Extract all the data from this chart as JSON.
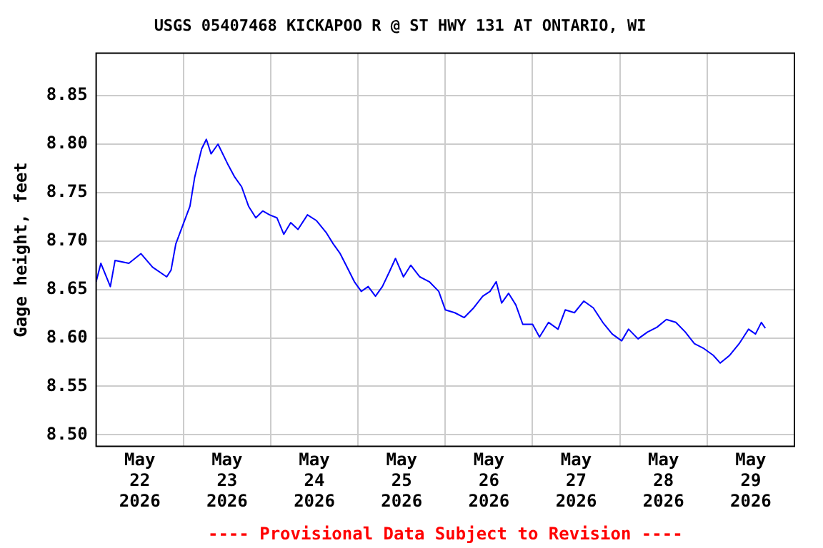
{
  "chart_data": {
    "type": "line",
    "title": "USGS 05407468 KICKAPOO R @ ST HWY 131 AT ONTARIO, WI",
    "ylabel": "Gage height, feet",
    "annotations": [
      "---- Provisional Data Subject to Revision ----"
    ],
    "xlim": [
      "2026-05-22T00:00",
      "2026-05-30T00:00"
    ],
    "ylim": [
      8.488,
      8.894
    ],
    "xticks": [
      {
        "value": "2026-05-22T12:00",
        "label": "May 22 2026"
      },
      {
        "value": "2026-05-23T00:00",
        "label": null
      },
      {
        "value": "2026-05-23T12:00",
        "label": "May 23 2026"
      },
      {
        "value": "2026-05-24T00:00",
        "label": null
      },
      {
        "value": "2026-05-24T12:00",
        "label": "May 24 2026"
      },
      {
        "value": "2026-05-25T00:00",
        "label": null
      },
      {
        "value": "2026-05-25T12:00",
        "label": "May 25 2026"
      },
      {
        "value": "2026-05-26T00:00",
        "label": null
      },
      {
        "value": "2026-05-26T12:00",
        "label": "May 26 2026"
      },
      {
        "value": "2026-05-27T00:00",
        "label": null
      },
      {
        "value": "2026-05-27T12:00",
        "label": "May 27 2026"
      },
      {
        "value": "2026-05-28T00:00",
        "label": null
      },
      {
        "value": "2026-05-28T12:00",
        "label": "May 28 2026"
      },
      {
        "value": "2026-05-29T00:00",
        "label": null
      },
      {
        "value": "2026-05-29T12:00",
        "label": "May 29 2026"
      }
    ],
    "yticks": [
      {
        "value": 8.5,
        "label": "8.50"
      },
      8.55,
      {
        "value": 8.6,
        "label": "8.60"
      },
      8.65,
      {
        "value": 8.7,
        "label": "8.70"
      },
      8.75,
      {
        "value": 8.8,
        "label": "8.80"
      },
      8.85
    ],
    "grid": true,
    "legend": false,
    "marker": "none",
    "line_style": "solid",
    "series": [
      {
        "color": "#0000ff",
        "x": [
          "2026-05-22T00:00",
          "2026-05-22T01:18",
          "2026-05-22T03:54",
          "2026-05-22T05:12",
          "2026-05-22T09:00",
          "2026-05-22T12:18",
          "2026-05-22T15:30",
          "2026-05-22T19:24",
          "2026-05-22T20:36",
          "2026-05-22T21:54",
          "2026-05-22T23:54",
          "2026-05-23T01:48",
          "2026-05-23T03:06",
          "2026-05-23T05:00",
          "2026-05-23T06:18",
          "2026-05-23T07:36",
          "2026-05-23T09:30",
          "2026-05-23T12:06",
          "2026-05-23T14:06",
          "2026-05-23T16:00",
          "2026-05-23T17:54",
          "2026-05-23T19:54",
          "2026-05-23T21:48",
          "2026-05-23T23:42",
          "2026-05-24T01:42",
          "2026-05-24T03:36",
          "2026-05-24T05:30",
          "2026-05-24T07:30",
          "2026-05-24T10:06",
          "2026-05-24T12:36",
          "2026-05-24T15:12",
          "2026-05-24T17:12",
          "2026-05-24T19:06",
          "2026-05-24T21:00",
          "2026-05-24T23:00",
          "2026-05-25T00:54",
          "2026-05-25T02:48",
          "2026-05-25T04:48",
          "2026-05-25T06:42",
          "2026-05-25T08:36",
          "2026-05-25T10:18",
          "2026-05-25T12:30",
          "2026-05-25T14:30",
          "2026-05-25T17:00",
          "2026-05-25T19:36",
          "2026-05-25T22:12",
          "2026-05-26T00:00",
          "2026-05-26T02:36",
          "2026-05-26T05:12",
          "2026-05-26T07:48",
          "2026-05-26T10:18",
          "2026-05-26T12:18",
          "2026-05-26T14:00",
          "2026-05-26T15:30",
          "2026-05-26T17:24",
          "2026-05-26T19:24",
          "2026-05-26T21:18",
          "2026-05-27T00:00",
          "2026-05-27T01:54",
          "2026-05-27T04:24",
          "2026-05-27T07:00",
          "2026-05-27T09:00",
          "2026-05-27T11:30",
          "2026-05-27T14:06",
          "2026-05-27T16:42",
          "2026-05-27T19:18",
          "2026-05-27T21:54",
          "2026-05-28T00:30",
          "2026-05-28T02:24",
          "2026-05-28T05:00",
          "2026-05-28T07:36",
          "2026-05-28T10:12",
          "2026-05-28T12:48",
          "2026-05-28T15:24",
          "2026-05-28T18:00",
          "2026-05-28T20:30",
          "2026-05-28T23:06",
          "2026-05-29T01:42",
          "2026-05-29T03:36",
          "2026-05-29T06:12",
          "2026-05-29T08:48",
          "2026-05-29T11:24",
          "2026-05-29T13:18",
          "2026-05-29T14:54",
          "2026-05-29T16:00"
        ],
        "values": [
          8.658,
          8.677,
          8.653,
          8.68,
          8.677,
          8.687,
          8.673,
          8.663,
          8.67,
          8.697,
          8.717,
          8.736,
          8.766,
          8.795,
          8.805,
          8.79,
          8.8,
          8.78,
          8.766,
          8.756,
          8.736,
          8.724,
          8.731,
          8.727,
          8.724,
          8.707,
          8.719,
          8.712,
          8.727,
          8.721,
          8.709,
          8.697,
          8.687,
          8.673,
          8.658,
          8.648,
          8.653,
          8.643,
          8.653,
          8.668,
          8.682,
          8.663,
          8.675,
          8.663,
          8.658,
          8.648,
          8.629,
          8.626,
          8.621,
          8.631,
          8.643,
          8.648,
          8.658,
          8.636,
          8.646,
          8.634,
          8.614,
          8.614,
          8.601,
          8.616,
          8.609,
          8.629,
          8.626,
          8.638,
          8.631,
          8.616,
          8.604,
          8.597,
          8.609,
          8.599,
          8.606,
          8.611,
          8.619,
          8.616,
          8.606,
          8.594,
          8.589,
          8.582,
          8.574,
          8.582,
          8.594,
          8.609,
          8.604,
          8.616,
          8.61
        ]
      }
    ]
  }
}
